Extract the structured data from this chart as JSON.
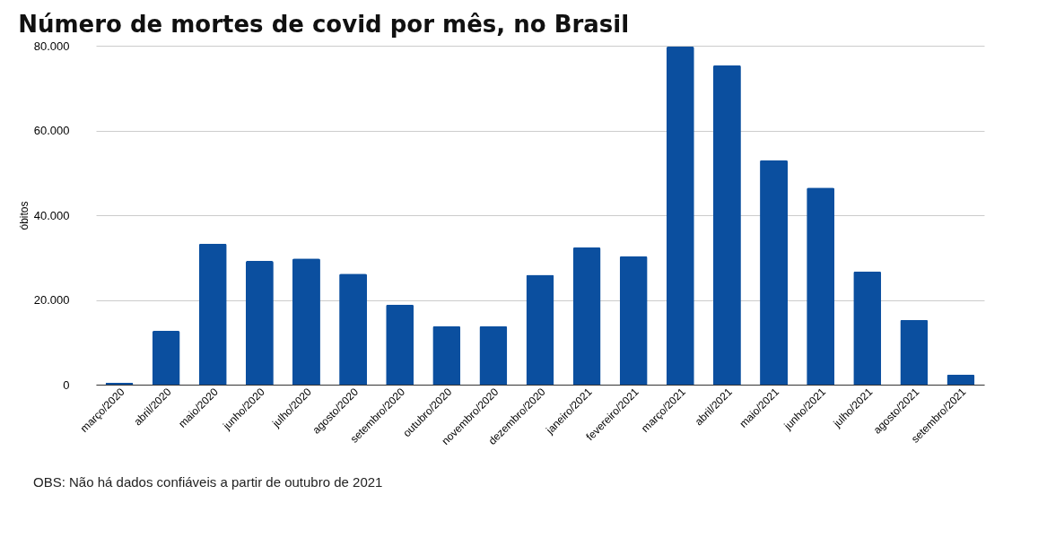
{
  "chart_data": {
    "type": "bar",
    "title": "Número de mortes de covid por mês, no Brasil",
    "ylabel": "óbitos",
    "categories": [
      "março/2020",
      "abril/2020",
      "maio/2020",
      "junho/2020",
      "julho/2020",
      "agosto/2020",
      "setembro/2020",
      "outubro/2020",
      "novembro/2020",
      "dezembro/2020",
      "janeiro/2021",
      "fevereiro/2021",
      "março/2021",
      "abril/2021",
      "maio/2021",
      "junho/2021",
      "julho/2021",
      "agosto/2021",
      "setembro/2021"
    ],
    "values": [
      400,
      12700,
      33300,
      29200,
      29800,
      26200,
      18900,
      13800,
      13800,
      25900,
      32400,
      30300,
      79800,
      75400,
      53000,
      46500,
      26700,
      15300,
      2400
    ],
    "color": "#0b4f9f",
    "ylim": [
      0,
      80000
    ],
    "yticks": [
      {
        "value": 0,
        "label": "0"
      },
      {
        "value": 20000,
        "label": "20.000"
      },
      {
        "value": 40000,
        "label": "40.000"
      },
      {
        "value": 60000,
        "label": "60.000"
      },
      {
        "value": 80000,
        "label": "80.000"
      }
    ],
    "grid": "y",
    "annotations": [
      "OBS: Não há dados confiáveis a partir de outubro de 2021"
    ]
  }
}
